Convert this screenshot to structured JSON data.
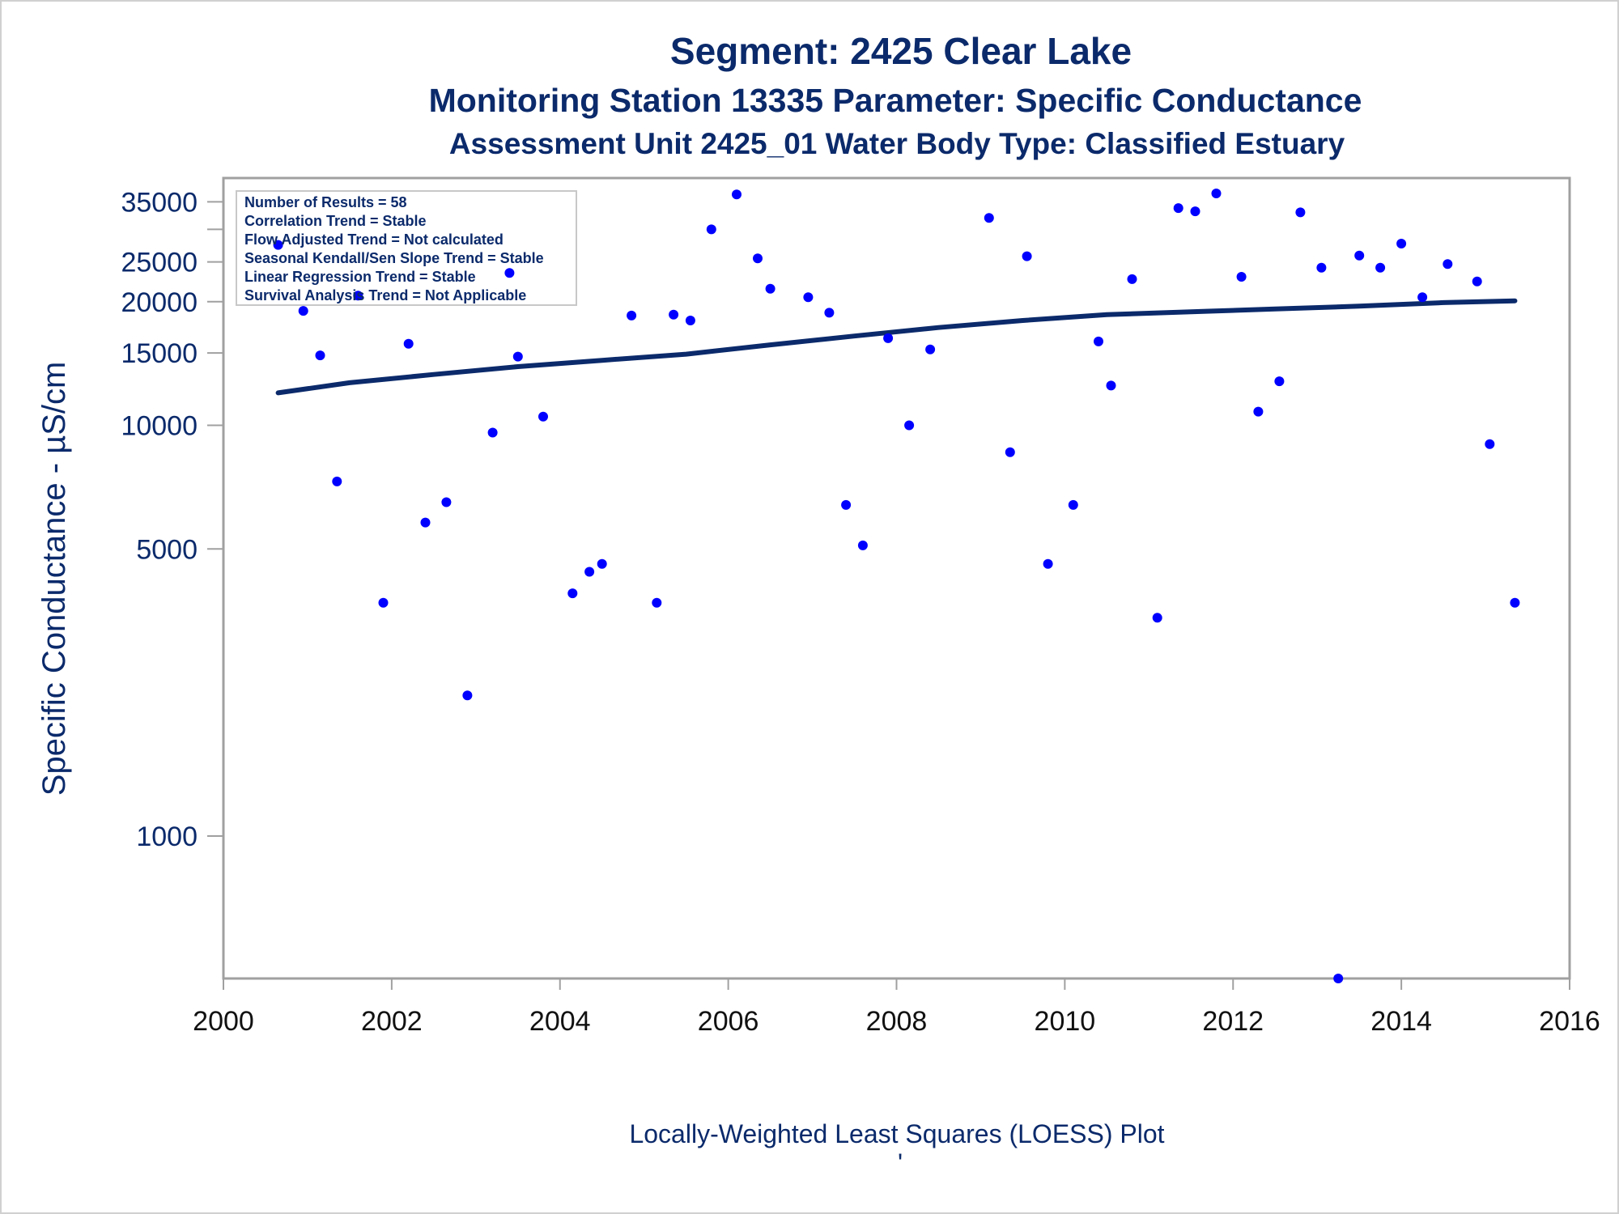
{
  "titles": {
    "line1": "Segment: 2425  Clear Lake",
    "line2": "Monitoring Station 13335 Parameter: Specific Conductance",
    "line3": "Assessment Unit 2425_01   Water Body Type: Classified Estuary"
  },
  "footnote": "Locally-Weighted Least Squares (LOESS) Plot",
  "footnote_mark": "'",
  "colors": {
    "title": "#0b2a6b",
    "points": "#0000ff",
    "trend_line": "#0b2a6b",
    "frame": "#a0a0a0"
  },
  "stats_box": [
    "Number of Results = 58",
    "Correlation Trend = Stable",
    "Flow Adjusted Trend = Not calculated",
    "Seasonal Kendall/Sen Slope Trend = Stable",
    "Linear Regression Trend = Stable",
    "Survival Analysis Trend = Not Applicable"
  ],
  "chart_data": {
    "type": "scatter",
    "xlabel": "",
    "ylabel": "Specific Conductance -  µS/cm",
    "y_scale": "log",
    "xlim": [
      2000,
      2016
    ],
    "ylim": [
      450,
      40000
    ],
    "x_ticks": [
      2000,
      2002,
      2004,
      2006,
      2008,
      2010,
      2012,
      2014,
      2016
    ],
    "y_ticks": [
      1000,
      5000,
      10000,
      15000,
      20000,
      25000,
      35000
    ],
    "y_tick_labels": [
      "1000",
      "5000",
      "10000",
      "15000",
      "20000",
      "25000",
      "35000"
    ],
    "y_minor_ticks": [
      30000
    ],
    "grid": false,
    "legend": "top-left",
    "series": [
      {
        "type": "scatter",
        "x": [
          2000.65,
          2000.95,
          2001.15,
          2001.35,
          2001.6,
          2001.9,
          2002.2,
          2002.4,
          2002.65,
          2002.9,
          2003.2,
          2003.4,
          2003.5,
          2003.8,
          2004.15,
          2004.35,
          2004.5,
          2004.85,
          2005.15,
          2005.35,
          2005.55,
          2005.8,
          2006.1,
          2006.35,
          2006.5,
          2006.95,
          2007.2,
          2007.4,
          2007.6,
          2007.9,
          2008.15,
          2008.4,
          2009.1,
          2009.35,
          2009.55,
          2009.8,
          2010.1,
          2010.4,
          2010.55,
          2010.8,
          2011.1,
          2011.35,
          2011.55,
          2011.8,
          2012.1,
          2012.3,
          2012.55,
          2012.8,
          2013.05,
          2013.25,
          2013.5,
          2013.75,
          2014.0,
          2014.25,
          2014.55,
          2014.9,
          2015.05,
          2015.35
        ],
        "y": [
          27500,
          19000,
          14800,
          7300,
          20700,
          3700,
          15800,
          5800,
          6500,
          2200,
          9600,
          23500,
          14700,
          10500,
          3900,
          4400,
          4600,
          18500,
          3700,
          18600,
          18000,
          30000,
          36500,
          25500,
          21500,
          20500,
          18800,
          6400,
          5100,
          16300,
          10000,
          15300,
          32000,
          8600,
          25800,
          4600,
          6400,
          16000,
          12500,
          22700,
          3400,
          33800,
          33200,
          36700,
          23000,
          10800,
          12800,
          33000,
          24200,
          450,
          25900,
          24200,
          27700,
          20500,
          24700,
          22400,
          9000,
          3700
        ]
      },
      {
        "type": "line",
        "x": [
          2000.65,
          2001.5,
          2002.5,
          2003.5,
          2004.5,
          2005.5,
          2006.5,
          2007.5,
          2008.5,
          2009.5,
          2010.5,
          2011.5,
          2012.5,
          2013.5,
          2014.5,
          2015.35
        ],
        "y": [
          12000,
          12700,
          13300,
          13900,
          14400,
          14900,
          15700,
          16500,
          17300,
          18000,
          18600,
          18900,
          19200,
          19500,
          19900,
          20100
        ]
      }
    ]
  }
}
